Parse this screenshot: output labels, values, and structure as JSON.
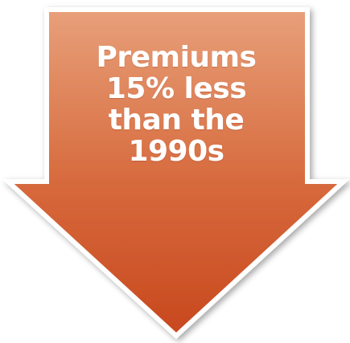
{
  "callout": {
    "lines": [
      "Premiums",
      "15% less",
      "than the",
      "1990s"
    ],
    "colors": {
      "top": "#e8a07a",
      "bottom": "#c8481e",
      "edge": "#ffffff",
      "shadow": "#bdbdbd"
    }
  }
}
